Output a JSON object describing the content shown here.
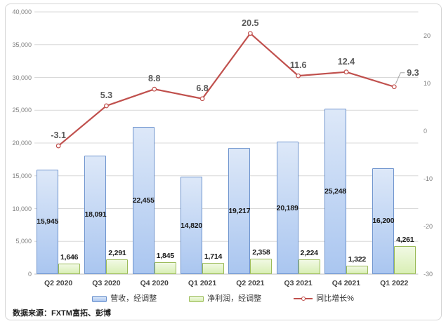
{
  "footer": {
    "source": "数据来源：FXTM富拓、彭博"
  },
  "colors": {
    "gridline": "#d9d9d9",
    "axis_line": "#bfbfbf",
    "tick_text": "#7f7f7f",
    "leader_line": "#a6a6a6",
    "panel_border": "#d6d6d6"
  },
  "chart_data": {
    "type": "combo-bar-line",
    "title": "",
    "categories": [
      "Q2 2020",
      "Q3 2020",
      "Q4 2020",
      "Q1 2021",
      "Q2 2021",
      "Q3 2021",
      "Q4 2021",
      "Q1 2022"
    ],
    "series": [
      {
        "name": "营收，经调整",
        "type": "bar",
        "axis": "left",
        "values": [
          15945,
          18091,
          22455,
          14820,
          19217,
          20189,
          25248,
          16200
        ],
        "labels": [
          "15,945",
          "18,091",
          "22,455",
          "14,820",
          "19,217",
          "20,189",
          "25,248",
          "16,200"
        ],
        "fill_top": "#dde8f8",
        "fill_bottom": "#aac6f0",
        "border": "#6d93cd"
      },
      {
        "name": "净利润，经调整",
        "type": "bar",
        "axis": "left",
        "values": [
          1646,
          2291,
          1845,
          1714,
          2358,
          2224,
          1322,
          4261
        ],
        "labels": [
          "1,646",
          "2,291",
          "1,845",
          "1,714",
          "2,358",
          "2,224",
          "1,322",
          "4,261"
        ],
        "fill_top": "#f1f9e4",
        "fill_bottom": "#d9efb5",
        "border": "#9bbb59"
      },
      {
        "name": "同比增长%",
        "type": "line",
        "axis": "right",
        "values": [
          -3.1,
          5.3,
          8.8,
          6.8,
          20.5,
          11.6,
          12.4,
          9.3
        ],
        "labels": [
          "-3.1",
          "5.3",
          "8.8",
          "6.8",
          "20.5",
          "11.6",
          "12.4",
          "9.3"
        ],
        "color": "#c0504d"
      }
    ],
    "left_axis": {
      "min": 0,
      "max": 40000,
      "tick_step": 5000,
      "tick_values": [
        40000,
        35000,
        30000,
        25000,
        20000,
        15000,
        10000,
        5000,
        0
      ],
      "tick_labels": [
        "40,000",
        "35,000",
        "30,000",
        "25,000",
        "20,000",
        "15,000",
        "10,000",
        "5,000",
        "0"
      ]
    },
    "right_axis": {
      "min": -30,
      "max": 25,
      "tick_values": [
        20,
        10,
        0,
        -10,
        -20,
        -30
      ],
      "tick_labels": [
        "20",
        "10",
        "0",
        "-10",
        "-20",
        "-30"
      ]
    },
    "grid": true,
    "legend_position": "bottom"
  }
}
